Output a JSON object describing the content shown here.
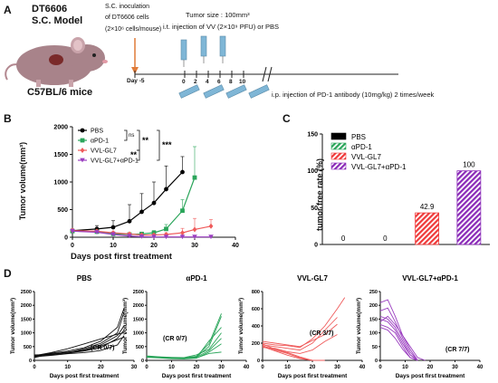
{
  "panelA": {
    "letter": "A",
    "model_line1": "DT6606",
    "model_line2": "S.C. Model",
    "mouse_label": "C57BL/6 mice",
    "inoc_line1": "S.C. inoculation",
    "inoc_line2": "of DT6606 cells",
    "inoc_line3": "(2×10⁶ cells/mouse)",
    "tumor_size": "Tumor size : 100mm³",
    "it_injection": "i.t. injection of  VV  (2×10⁹ PFU)  or PBS",
    "day_label": "Day -5",
    "timeline_days": [
      "0",
      "2",
      "4",
      "6",
      "8",
      "10"
    ],
    "ip_injection": "i.p. injection of  PD-1 antibody  (10mg/kg)  2 times/week",
    "colors": {
      "mouse": "#a8838a",
      "tumor": "#7a2a2a",
      "syringe": "#7fb6d6",
      "arrow": "#e07b39"
    }
  },
  "panelB": {
    "letter": "B",
    "ylabel": "Tumor volume(mm³)",
    "xlabel": "Days post first treatment",
    "sig": {
      "ns": "ns",
      "s1": "**",
      "s2": "**",
      "s3": "***"
    }
  },
  "panelC": {
    "letter": "C",
    "ylabel": "tumor free rate (%)",
    "labels": [
      "0",
      "0",
      "42.9",
      "100"
    ]
  },
  "panelD": {
    "letter": "D",
    "ylabel": "Tumor volume(mm³)",
    "xlabel": "Days post first treatment",
    "titles": [
      "PBS",
      "αPD-1",
      "VVL-GL7",
      "VVL-GL7+αPD-1"
    ],
    "cr": [
      "(CR 0/7)",
      "(CR 0/7)",
      "(CR 3/7)",
      "(CR 7/7)"
    ]
  },
  "chart_data": [
    {
      "type": "line",
      "panel": "B",
      "xlim": [
        0,
        40
      ],
      "ylim": [
        0,
        2000
      ],
      "xticks": [
        0,
        10,
        20,
        30,
        40
      ],
      "yticks": [
        0,
        500,
        1000,
        1500,
        2000
      ],
      "xlabel": "Days post first treatment",
      "ylabel": "Tumor volume(mm³)",
      "legend": "top-left",
      "series": [
        {
          "name": "PBS",
          "color": "#000000",
          "marker": "circle",
          "x": [
            0,
            6,
            10,
            14,
            17,
            20,
            23,
            27
          ],
          "y": [
            120,
            150,
            180,
            290,
            460,
            620,
            870,
            1180
          ],
          "err": [
            30,
            60,
            120,
            300,
            330,
            380,
            420,
            280
          ]
        },
        {
          "name": "αPD-1",
          "color": "#2aa55a",
          "marker": "square",
          "x": [
            0,
            6,
            10,
            14,
            17,
            20,
            23,
            27,
            30
          ],
          "y": [
            110,
            100,
            60,
            50,
            60,
            80,
            150,
            480,
            1080
          ],
          "err": [
            20,
            20,
            20,
            20,
            20,
            40,
            80,
            200,
            560
          ]
        },
        {
          "name": "VVL-GL7",
          "color": "#ef5a5a",
          "marker": "diamond",
          "x": [
            0,
            6,
            10,
            14,
            17,
            20,
            23,
            27,
            30,
            34
          ],
          "y": [
            120,
            110,
            80,
            60,
            40,
            40,
            50,
            80,
            140,
            200
          ],
          "err": [
            30,
            20,
            20,
            20,
            20,
            20,
            30,
            80,
            200,
            120
          ]
        },
        {
          "name": "VVL-GL7+αPD-1",
          "color": "#9b3fc0",
          "marker": "triangle-down",
          "x": [
            0,
            6,
            10,
            14,
            17,
            20,
            23,
            27,
            30,
            34
          ],
          "y": [
            110,
            90,
            50,
            20,
            10,
            5,
            5,
            5,
            5,
            5
          ],
          "err": [
            20,
            20,
            15,
            10,
            5,
            0,
            0,
            0,
            0,
            0
          ]
        }
      ]
    },
    {
      "type": "bar",
      "panel": "C",
      "categories": [
        "PBS",
        "αPD-1",
        "VVL-GL7",
        "VVL-GL7+αPD-1"
      ],
      "values": [
        0,
        0,
        42.9,
        100
      ],
      "ylim": [
        0,
        150
      ],
      "yticks": [
        0,
        50,
        100,
        150
      ],
      "ylabel": "tumor free rate (%)",
      "legend": "top-left",
      "colors": [
        "#000000",
        "#2aa55a",
        "#ef3a3a",
        "#8a2ab8"
      ],
      "patterns": [
        "solid",
        "hatch",
        "hatch",
        "hatch"
      ]
    },
    {
      "type": "line",
      "panel": "D",
      "title": "PBS",
      "color": "#111111",
      "xlim": [
        0,
        30
      ],
      "ylim": [
        0,
        2500
      ],
      "xticks": [
        0,
        10,
        20,
        30
      ],
      "yticks": [
        0,
        500,
        1000,
        1500,
        2000,
        2500
      ],
      "lines": [
        [
          [
            0,
            150
          ],
          [
            5,
            260
          ],
          [
            10,
            340
          ],
          [
            15,
            460
          ],
          [
            20,
            700
          ],
          [
            25,
            1200
          ],
          [
            27,
            1900
          ]
        ],
        [
          [
            0,
            180
          ],
          [
            5,
            230
          ],
          [
            10,
            300
          ],
          [
            15,
            380
          ],
          [
            20,
            560
          ],
          [
            25,
            900
          ],
          [
            27,
            1250
          ]
        ],
        [
          [
            0,
            200
          ],
          [
            5,
            210
          ],
          [
            10,
            280
          ],
          [
            15,
            420
          ],
          [
            20,
            620
          ],
          [
            25,
            1000
          ],
          [
            27,
            1750
          ]
        ],
        [
          [
            0,
            100
          ],
          [
            5,
            240
          ],
          [
            10,
            260
          ],
          [
            15,
            340
          ],
          [
            20,
            460
          ],
          [
            25,
            800
          ],
          [
            27,
            1100
          ]
        ],
        [
          [
            0,
            130
          ],
          [
            5,
            180
          ],
          [
            10,
            240
          ],
          [
            15,
            280
          ],
          [
            20,
            360
          ],
          [
            25,
            560
          ],
          [
            27,
            900
          ]
        ],
        [
          [
            0,
            170
          ],
          [
            5,
            280
          ],
          [
            10,
            420
          ],
          [
            15,
            600
          ],
          [
            20,
            780
          ],
          [
            25,
            950
          ],
          [
            27,
            1000
          ]
        ],
        [
          [
            0,
            150
          ],
          [
            5,
            200
          ],
          [
            10,
            270
          ],
          [
            15,
            360
          ],
          [
            20,
            520
          ],
          [
            25,
            750
          ],
          [
            27,
            850
          ]
        ]
      ]
    },
    {
      "type": "line",
      "panel": "D",
      "title": "αPD-1",
      "color": "#2aa55a",
      "xlim": [
        0,
        40
      ],
      "ylim": [
        0,
        2500
      ],
      "xticks": [
        0,
        10,
        20,
        30,
        40
      ],
      "yticks": [
        0,
        500,
        1000,
        1500,
        2000,
        2500
      ],
      "lines": [
        [
          [
            0,
            150
          ],
          [
            5,
            120
          ],
          [
            10,
            100
          ],
          [
            15,
            90
          ],
          [
            20,
            150
          ],
          [
            25,
            600
          ],
          [
            30,
            1700
          ]
        ],
        [
          [
            0,
            130
          ],
          [
            5,
            110
          ],
          [
            10,
            80
          ],
          [
            15,
            70
          ],
          [
            20,
            130
          ],
          [
            25,
            500
          ],
          [
            30,
            1600
          ]
        ],
        [
          [
            0,
            120
          ],
          [
            5,
            100
          ],
          [
            10,
            70
          ],
          [
            15,
            60
          ],
          [
            20,
            100
          ],
          [
            25,
            700
          ],
          [
            30,
            1200
          ]
        ],
        [
          [
            0,
            160
          ],
          [
            5,
            130
          ],
          [
            10,
            110
          ],
          [
            15,
            100
          ],
          [
            20,
            200
          ],
          [
            25,
            400
          ],
          [
            30,
            1000
          ]
        ],
        [
          [
            0,
            140
          ],
          [
            5,
            120
          ],
          [
            10,
            90
          ],
          [
            15,
            80
          ],
          [
            20,
            120
          ],
          [
            25,
            350
          ],
          [
            30,
            800
          ]
        ],
        [
          [
            0,
            110
          ],
          [
            5,
            90
          ],
          [
            10,
            60
          ],
          [
            15,
            50
          ],
          [
            20,
            80
          ],
          [
            25,
            300
          ],
          [
            30,
            600
          ]
        ],
        [
          [
            0,
            150
          ],
          [
            5,
            110
          ],
          [
            10,
            80
          ],
          [
            15,
            60
          ],
          [
            20,
            90
          ],
          [
            25,
            250
          ],
          [
            30,
            300
          ]
        ]
      ]
    },
    {
      "type": "line",
      "panel": "D",
      "title": "VVL-GL7",
      "color": "#ef5a5a",
      "xlim": [
        0,
        40
      ],
      "ylim": [
        0,
        800
      ],
      "xticks": [
        0,
        10,
        20,
        30,
        40
      ],
      "yticks": [
        0,
        200,
        400,
        600,
        800
      ],
      "lines": [
        [
          [
            0,
            200
          ],
          [
            5,
            180
          ],
          [
            10,
            170
          ],
          [
            15,
            150
          ],
          [
            20,
            250
          ],
          [
            25,
            400
          ],
          [
            30,
            600
          ],
          [
            33,
            730
          ]
        ],
        [
          [
            0,
            180
          ],
          [
            5,
            160
          ],
          [
            10,
            140
          ],
          [
            15,
            120
          ],
          [
            20,
            200
          ],
          [
            25,
            350
          ],
          [
            30,
            500
          ]
        ],
        [
          [
            0,
            220
          ],
          [
            5,
            200
          ],
          [
            10,
            180
          ],
          [
            15,
            160
          ],
          [
            20,
            230
          ],
          [
            25,
            300
          ],
          [
            30,
            420
          ]
        ],
        [
          [
            0,
            150
          ],
          [
            5,
            140
          ],
          [
            10,
            100
          ],
          [
            15,
            80
          ],
          [
            20,
            120
          ],
          [
            25,
            220
          ],
          [
            30,
            300
          ]
        ],
        [
          [
            0,
            170
          ],
          [
            5,
            120
          ],
          [
            10,
            80
          ],
          [
            15,
            30
          ],
          [
            20,
            0
          ],
          [
            25,
            0
          ]
        ],
        [
          [
            0,
            160
          ],
          [
            5,
            110
          ],
          [
            10,
            60
          ],
          [
            15,
            20
          ],
          [
            20,
            0
          ]
        ],
        [
          [
            0,
            190
          ],
          [
            5,
            130
          ],
          [
            10,
            90
          ],
          [
            15,
            40
          ],
          [
            20,
            0
          ]
        ]
      ]
    },
    {
      "type": "line",
      "panel": "D",
      "title": "VVL-GL7+αPD-1",
      "color": "#9b3fc0",
      "xlim": [
        0,
        40
      ],
      "ylim": [
        0,
        250
      ],
      "xticks": [
        0,
        10,
        20,
        30,
        40
      ],
      "yticks": [
        0,
        50,
        100,
        150,
        200,
        250
      ],
      "lines": [
        [
          [
            0,
            210
          ],
          [
            3,
            220
          ],
          [
            6,
            160
          ],
          [
            9,
            90
          ],
          [
            12,
            40
          ],
          [
            15,
            0
          ]
        ],
        [
          [
            0,
            180
          ],
          [
            3,
            190
          ],
          [
            6,
            140
          ],
          [
            9,
            80
          ],
          [
            12,
            30
          ],
          [
            15,
            0
          ]
        ],
        [
          [
            0,
            160
          ],
          [
            3,
            150
          ],
          [
            6,
            120
          ],
          [
            9,
            70
          ],
          [
            12,
            20
          ],
          [
            15,
            0
          ]
        ],
        [
          [
            0,
            150
          ],
          [
            3,
            140
          ],
          [
            6,
            110
          ],
          [
            9,
            60
          ],
          [
            12,
            20
          ],
          [
            15,
            0
          ]
        ],
        [
          [
            0,
            140
          ],
          [
            3,
            160
          ],
          [
            6,
            130
          ],
          [
            9,
            90
          ],
          [
            12,
            50
          ],
          [
            15,
            10
          ],
          [
            18,
            0
          ]
        ],
        [
          [
            0,
            130
          ],
          [
            3,
            120
          ],
          [
            6,
            100
          ],
          [
            9,
            50
          ],
          [
            12,
            10
          ],
          [
            15,
            0
          ]
        ],
        [
          [
            0,
            120
          ],
          [
            3,
            110
          ],
          [
            6,
            80
          ],
          [
            9,
            40
          ],
          [
            12,
            10
          ],
          [
            15,
            0
          ]
        ]
      ]
    }
  ]
}
